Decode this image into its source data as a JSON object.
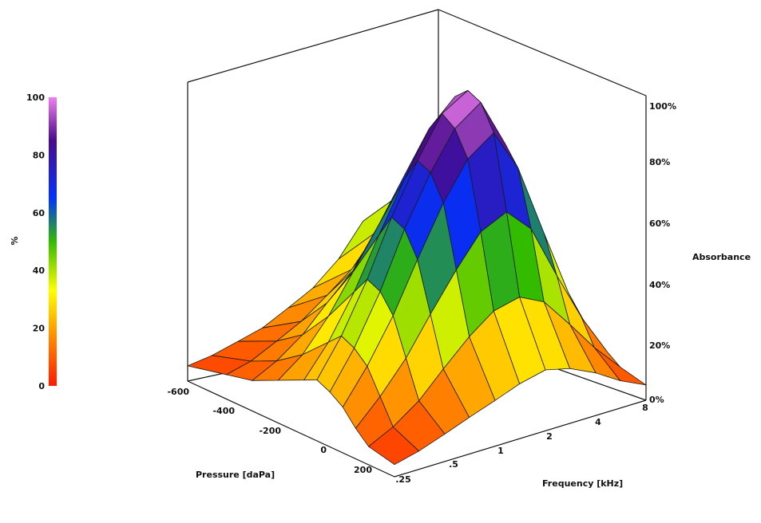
{
  "chart_data": {
    "type": "surface3d",
    "title": "",
    "colorbar": {
      "label": "%",
      "ticks": [
        "0",
        "20",
        "40",
        "60",
        "80",
        "100"
      ],
      "range": [
        0,
        100
      ],
      "colors": [
        "#ff1a00",
        "#ff8c00",
        "#ffff00",
        "#33bb00",
        "#0033ff",
        "#4a0a8c",
        "#f07ff0"
      ]
    },
    "x_axis": {
      "label": "Pressure [daPa]",
      "ticks": [
        "-600",
        "-400",
        "-200",
        "0",
        "200"
      ],
      "range": [
        -600,
        200
      ]
    },
    "y_axis": {
      "label": "Frequency [kHz]",
      "ticks": [
        ".25",
        ".5",
        "1",
        "2",
        "4",
        "8"
      ],
      "scale": "log",
      "range": [
        0.25,
        8
      ]
    },
    "z_axis": {
      "label": "Absorbance",
      "ticks": [
        "0%",
        "20%",
        "40%",
        "60%",
        "80%",
        "100%"
      ],
      "range": [
        0,
        100
      ]
    },
    "surface": {
      "pressure": [
        -600,
        -450,
        -350,
        -250,
        -150,
        -100,
        -50,
        0,
        50,
        100,
        200
      ],
      "frequency": [
        0.25,
        0.35,
        0.5,
        0.7,
        1,
        1.4,
        2,
        2.8,
        4,
        5.6,
        8
      ],
      "absorbance": [
        [
          5,
          6,
          8,
          10,
          14,
          18,
          25,
          35,
          30,
          20,
          8
        ],
        [
          8,
          10,
          14,
          18,
          24,
          30,
          40,
          50,
          40,
          25,
          10
        ],
        [
          10,
          14,
          20,
          28,
          36,
          45,
          55,
          60,
          45,
          28,
          12
        ],
        [
          14,
          20,
          30,
          42,
          55,
          68,
          78,
          70,
          50,
          30,
          13
        ],
        [
          18,
          28,
          42,
          58,
          74,
          88,
          96,
          80,
          55,
          32,
          14
        ],
        [
          20,
          32,
          48,
          66,
          82,
          95,
          100,
          84,
          58,
          33,
          14
        ],
        [
          18,
          30,
          46,
          64,
          80,
          92,
          98,
          82,
          56,
          32,
          13
        ],
        [
          15,
          26,
          40,
          56,
          72,
          84,
          90,
          76,
          52,
          30,
          12
        ],
        [
          10,
          18,
          28,
          40,
          52,
          62,
          66,
          58,
          40,
          24,
          10
        ],
        [
          6,
          10,
          16,
          24,
          32,
          38,
          40,
          36,
          26,
          16,
          7
        ],
        [
          4,
          6,
          9,
          12,
          15,
          18,
          20,
          18,
          14,
          9,
          5
        ]
      ]
    }
  }
}
